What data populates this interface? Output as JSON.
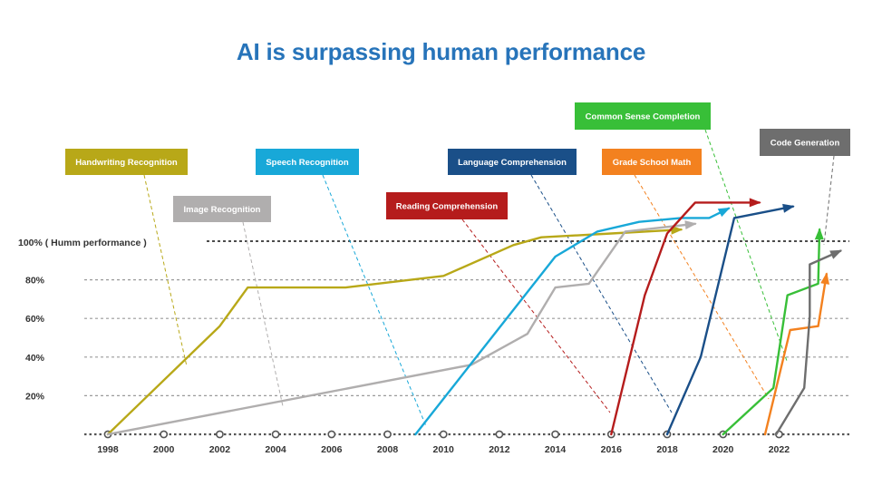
{
  "chart_data": {
    "type": "line",
    "title": "AI is surpassing human performance",
    "title_color": "#2774ba",
    "xlabel": "",
    "ylabel": "",
    "x_ticks": [
      "1998",
      "2000",
      "2002",
      "2004",
      "2006",
      "2008",
      "2010",
      "2012",
      "2014",
      "2016",
      "2018",
      "2020",
      "2022"
    ],
    "xlim": [
      1998,
      2025.5
    ],
    "ylim": [
      0,
      110
    ],
    "y_ticks": [
      {
        "value": 20,
        "label": "20%"
      },
      {
        "value": 40,
        "label": "40%"
      },
      {
        "value": 60,
        "label": "60%"
      },
      {
        "value": 80,
        "label": "80%"
      }
    ],
    "human_line": {
      "value": 100,
      "label": "100% ( Humm performance )"
    },
    "grid": true,
    "series": [
      {
        "name": "Handwriting Recognition",
        "color": "#b8a818",
        "text_color": "#ffffff",
        "points": [
          [
            1998,
            0
          ],
          [
            2002,
            56
          ],
          [
            2003,
            76
          ],
          [
            2006.5,
            76
          ],
          [
            2010,
            82
          ],
          [
            2012.5,
            98
          ],
          [
            2013.5,
            102
          ],
          [
            2016,
            104
          ],
          [
            2018.5,
            106
          ]
        ]
      },
      {
        "name": "Image Recognition",
        "color": "#b0aeae",
        "text_color": "#ffffff",
        "points": [
          [
            1998,
            0
          ],
          [
            2011,
            36
          ],
          [
            2013,
            52
          ],
          [
            2014,
            76
          ],
          [
            2015.2,
            78
          ],
          [
            2016.5,
            105
          ],
          [
            2019,
            109
          ]
        ]
      },
      {
        "name": "Speech Recognition",
        "color": "#18a8d8",
        "text_color": "#ffffff",
        "points": [
          [
            2009,
            0
          ],
          [
            2014,
            92
          ],
          [
            2015.5,
            105
          ],
          [
            2017,
            110
          ],
          [
            2018.5,
            112
          ],
          [
            2019.5,
            112
          ],
          [
            2020.2,
            117
          ]
        ]
      },
      {
        "name": "Reading Comprehension",
        "color": "#b51c1c",
        "text_color": "#ffffff",
        "points": [
          [
            2016,
            0
          ],
          [
            2017.2,
            72
          ],
          [
            2018,
            104
          ],
          [
            2019,
            120
          ],
          [
            2021.3,
            120
          ]
        ]
      },
      {
        "name": "Language Comprehension",
        "color": "#1a4f88",
        "text_color": "#ffffff",
        "points": [
          [
            2018,
            0
          ],
          [
            2019.2,
            40
          ],
          [
            2020.4,
            112
          ],
          [
            2022.5,
            118
          ]
        ]
      },
      {
        "name": "Common Sense Completion",
        "color": "#38bf38",
        "text_color": "#ffffff",
        "points": [
          [
            2020,
            0
          ],
          [
            2021.8,
            24
          ],
          [
            2022.3,
            72
          ],
          [
            2023.4,
            78
          ],
          [
            2023.45,
            106
          ]
        ]
      },
      {
        "name": "Grade School Math",
        "color": "#f3811f",
        "text_color": "#ffffff",
        "points": [
          [
            2021.5,
            0
          ],
          [
            2022.4,
            54
          ],
          [
            2023.4,
            56
          ],
          [
            2023.7,
            83
          ]
        ]
      },
      {
        "name": "Code Generation",
        "color": "#6e6e6e",
        "text_color": "#ffffff",
        "points": [
          [
            2021.9,
            0
          ],
          [
            2022.9,
            24
          ],
          [
            2023.1,
            61
          ],
          [
            2023.1,
            88
          ],
          [
            2024.2,
            95
          ]
        ]
      }
    ]
  }
}
